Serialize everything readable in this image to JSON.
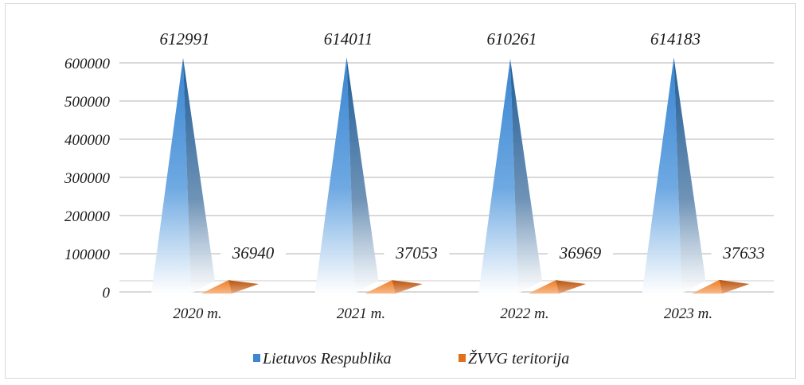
{
  "chart_data": {
    "type": "bar",
    "categories": [
      "2020 m.",
      "2021 m.",
      "2022 m.",
      "2023 m."
    ],
    "series": [
      {
        "name": "Lietuvos Respublika",
        "values": [
          612991,
          614011,
          610261,
          614183
        ],
        "color": "#3f86d0"
      },
      {
        "name": "ŽVVG teritorija",
        "values": [
          36940,
          37053,
          36969,
          37633
        ],
        "color": "#e0701e"
      }
    ],
    "yticks": [
      0,
      100000,
      200000,
      300000,
      400000,
      500000,
      600000
    ],
    "ylim": [
      0,
      600000
    ],
    "grid": true,
    "legend_position": "bottom",
    "mark_shape": "3d-pyramid"
  }
}
